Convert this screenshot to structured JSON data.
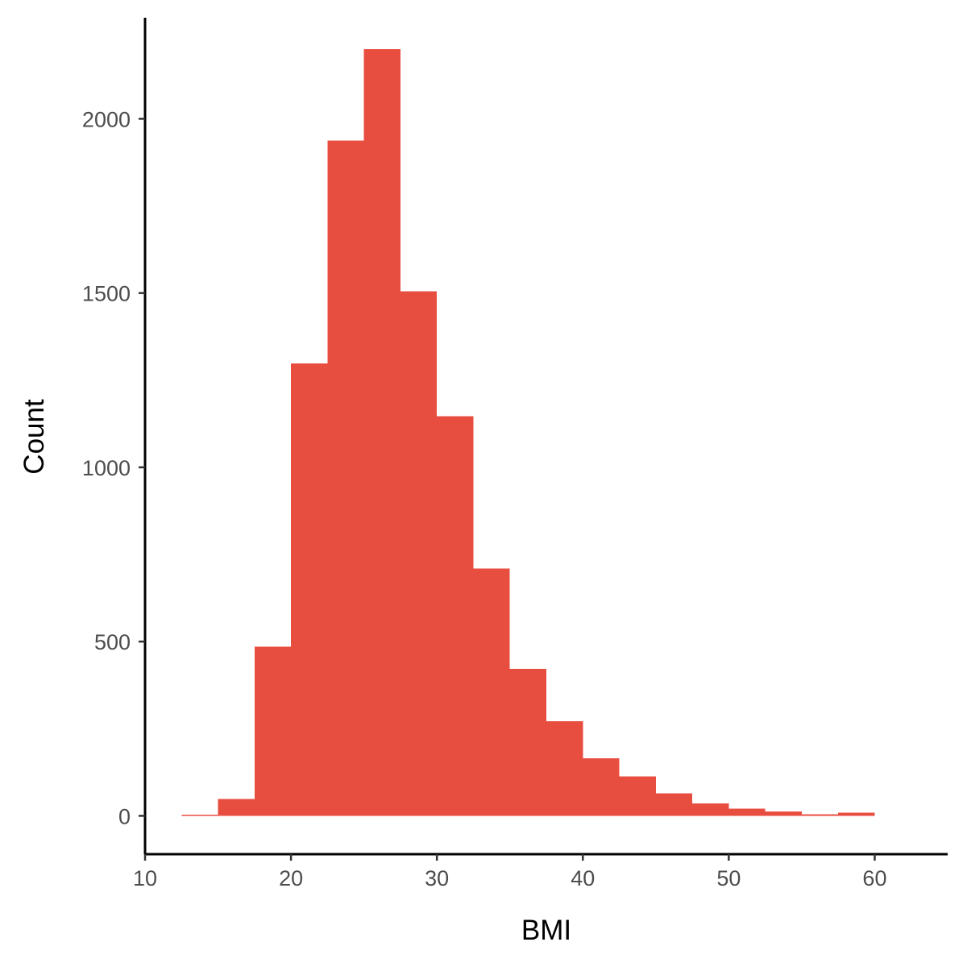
{
  "chart_data": {
    "type": "bar",
    "subtype": "histogram",
    "xlabel": "BMI",
    "ylabel": "Count",
    "bar_color": "#E84E40",
    "xlim": [
      10,
      65
    ],
    "ylim": [
      -110,
      2290
    ],
    "x_ticks": [
      10,
      20,
      30,
      40,
      50,
      60
    ],
    "y_ticks": [
      0,
      500,
      1000,
      1500,
      2000
    ],
    "bin_width": 2.5,
    "bins": [
      {
        "x0": 12.5,
        "x1": 15.0,
        "count": 3
      },
      {
        "x0": 15.0,
        "x1": 17.5,
        "count": 48
      },
      {
        "x0": 17.5,
        "x1": 20.0,
        "count": 485
      },
      {
        "x0": 20.0,
        "x1": 22.5,
        "count": 1298
      },
      {
        "x0": 22.5,
        "x1": 25.0,
        "count": 1937
      },
      {
        "x0": 25.0,
        "x1": 27.5,
        "count": 2200
      },
      {
        "x0": 27.5,
        "x1": 30.0,
        "count": 1505
      },
      {
        "x0": 30.0,
        "x1": 32.5,
        "count": 1147
      },
      {
        "x0": 32.5,
        "x1": 35.0,
        "count": 710
      },
      {
        "x0": 35.0,
        "x1": 37.5,
        "count": 422
      },
      {
        "x0": 37.5,
        "x1": 40.0,
        "count": 272
      },
      {
        "x0": 40.0,
        "x1": 42.5,
        "count": 165
      },
      {
        "x0": 42.5,
        "x1": 45.0,
        "count": 113
      },
      {
        "x0": 45.0,
        "x1": 47.5,
        "count": 64
      },
      {
        "x0": 47.5,
        "x1": 50.0,
        "count": 36
      },
      {
        "x0": 50.0,
        "x1": 52.5,
        "count": 21
      },
      {
        "x0": 52.5,
        "x1": 55.0,
        "count": 12
      },
      {
        "x0": 55.0,
        "x1": 57.5,
        "count": 5
      },
      {
        "x0": 57.5,
        "x1": 60.0,
        "count": 9
      }
    ],
    "grid": false,
    "legend": "none"
  }
}
